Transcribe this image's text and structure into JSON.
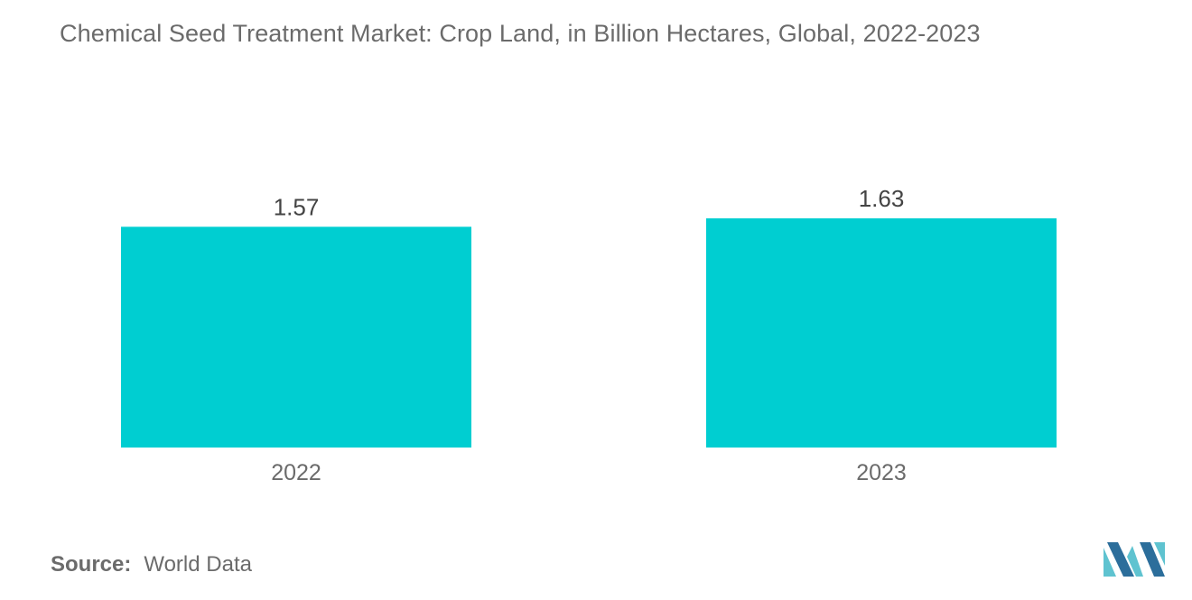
{
  "chart_data": {
    "type": "bar",
    "title": "Chemical Seed Treatment Market: Crop Land, in Billion Hectares, Global, 2022-2023",
    "categories": [
      "2022",
      "2023"
    ],
    "values": [
      1.57,
      1.63
    ],
    "data_labels": [
      "1.57",
      "1.63"
    ],
    "xlabel": "",
    "ylabel": "",
    "grid": false,
    "legend": "none",
    "bar_color": "#00CED1"
  },
  "source": {
    "label": "Source:",
    "value": "World Data"
  },
  "colors": {
    "bar": "#00CED1",
    "text": "#6b6b6b",
    "logo_dark": "#2c6e9b",
    "logo_light": "#5fc3d0"
  },
  "logo_icon": "mordor-intelligence-logo"
}
